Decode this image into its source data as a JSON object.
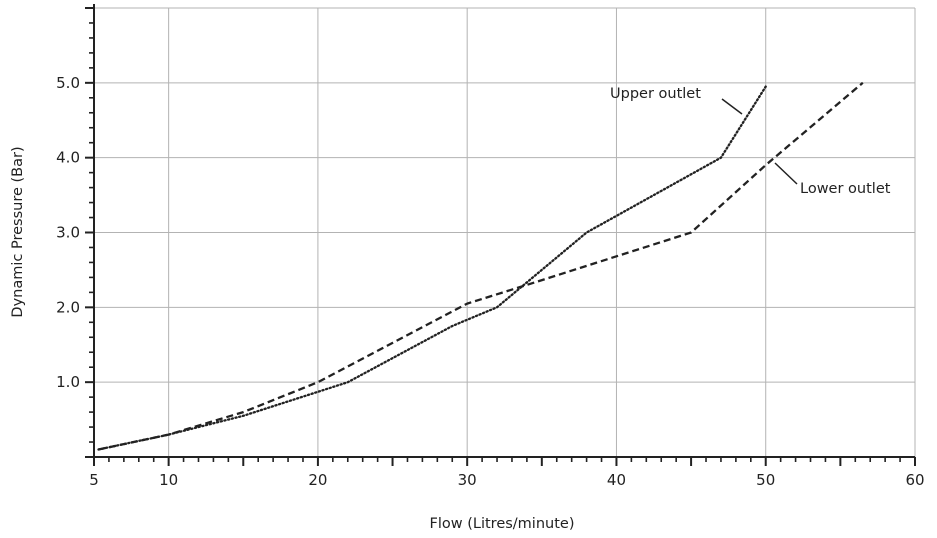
{
  "chart_data": {
    "type": "line",
    "title": "",
    "xlabel": "Flow (Litres/minute)",
    "ylabel": "Dynamic Pressure (Bar)",
    "xlim": [
      5,
      60
    ],
    "ylim": [
      0,
      6
    ],
    "x_ticks": [
      5,
      10,
      20,
      30,
      40,
      50,
      60
    ],
    "x_tick_labels": [
      "5",
      "10",
      "20",
      "30",
      "40",
      "50",
      "60"
    ],
    "y_ticks": [
      1,
      2,
      3,
      4,
      5
    ],
    "y_tick_labels": [
      "1.0",
      "2.0",
      "3.0",
      "4.0",
      "5.0"
    ],
    "grid": true,
    "series": [
      {
        "name": "Upper outlet",
        "style": "dotted",
        "color": "#222222",
        "x": [
          5.3,
          10,
          15,
          22,
          29,
          32,
          38,
          47,
          50
        ],
        "y": [
          0.1,
          0.3,
          0.55,
          1.0,
          1.75,
          2.0,
          3.0,
          4.0,
          4.95
        ]
      },
      {
        "name": "Lower outlet",
        "style": "dashed",
        "color": "#222222",
        "x": [
          5.3,
          10,
          15,
          20,
          30,
          34,
          45,
          50,
          56.5
        ],
        "y": [
          0.1,
          0.3,
          0.6,
          1.0,
          2.05,
          2.3,
          3.0,
          3.9,
          5.0
        ]
      }
    ],
    "annotations": [
      {
        "text": "Upper outlet",
        "series": "Upper outlet"
      },
      {
        "text": "Lower outlet",
        "series": "Lower outlet"
      }
    ]
  }
}
